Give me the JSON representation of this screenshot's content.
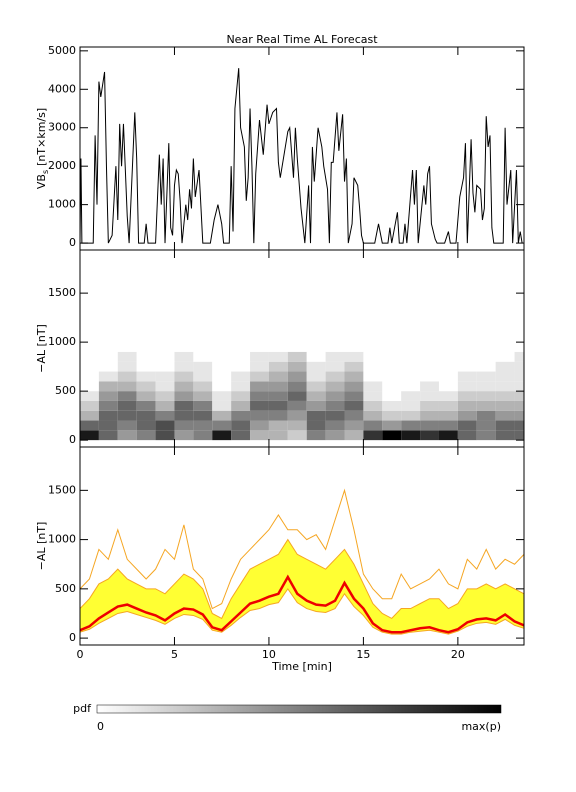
{
  "chart_data": [
    {
      "type": "line",
      "title": "Near Real Time AL Forecast",
      "ylabel": {
        "text": "VB",
        "subscript": "s",
        "unit": "[nT×km/s]"
      },
      "xlim": [
        0,
        23.5
      ],
      "ylim": [
        -180,
        5100
      ],
      "yticks": [
        0,
        1000,
        2000,
        3000,
        4000,
        5000
      ],
      "color": "#000000",
      "x": [
        0,
        0.05,
        0.1,
        0.7,
        0.8,
        0.9,
        1.0,
        1.1,
        1.3,
        1.4,
        1.5,
        1.7,
        1.9,
        2.0,
        2.1,
        2.2,
        2.3,
        2.5,
        2.6,
        2.9,
        3.0,
        3.1,
        3.4,
        3.5,
        3.6,
        4.0,
        4.2,
        4.3,
        4.4,
        4.5,
        4.6,
        4.7,
        4.8,
        4.9,
        5.0,
        5.1,
        5.2,
        5.3,
        5.4,
        5.6,
        5.7,
        5.8,
        5.9,
        6.0,
        6.1,
        6.3,
        6.5,
        6.9,
        7.1,
        7.3,
        7.5,
        7.6,
        7.9,
        8.0,
        8.1,
        8.2,
        8.4,
        8.5,
        8.7,
        8.8,
        8.9,
        9.0,
        9.1,
        9.2,
        9.3,
        9.5,
        9.7,
        9.9,
        10.0,
        10.2,
        10.4,
        10.5,
        10.6,
        10.8,
        11.0,
        11.1,
        11.3,
        11.4,
        11.5,
        11.7,
        11.9,
        12.1,
        12.2,
        12.3,
        12.4,
        12.6,
        12.8,
        12.9,
        13.1,
        13.2,
        13.3,
        13.4,
        13.6,
        13.7,
        13.9,
        14.0,
        14.1,
        14.2,
        14.4,
        14.5,
        14.7,
        14.8,
        14.9,
        15.0,
        15.6,
        15.8,
        16.0,
        16.3,
        16.4,
        16.5,
        16.8,
        16.9,
        17.1,
        17.2,
        17.3,
        17.6,
        17.7,
        17.8,
        17.9,
        18.2,
        18.3,
        18.4,
        18.5,
        18.6,
        18.8,
        18.9,
        19.3,
        19.5,
        19.6,
        19.9,
        20.1,
        20.3,
        20.4,
        20.5,
        20.7,
        20.8,
        20.9,
        21.0,
        21.2,
        21.3,
        21.4,
        21.5,
        21.6,
        21.7,
        21.8,
        21.9,
        22.4,
        22.5,
        22.6,
        22.8,
        22.9,
        23.1,
        23.2,
        23.3,
        23.4
      ],
      "values": [
        0,
        2200,
        0,
        0,
        2800,
        1000,
        4200,
        3800,
        4450,
        2000,
        0,
        200,
        2000,
        600,
        3100,
        2000,
        3100,
        700,
        0,
        3400,
        2200,
        0,
        0,
        500,
        0,
        0,
        2300,
        1000,
        2200,
        0,
        1300,
        2600,
        400,
        200,
        1500,
        1900,
        1800,
        1100,
        0,
        1000,
        600,
        1400,
        900,
        2200,
        1200,
        1900,
        0,
        0,
        600,
        1000,
        500,
        0,
        0,
        2000,
        300,
        3500,
        4550,
        3000,
        2500,
        1100,
        1700,
        3500,
        2000,
        0,
        1800,
        3200,
        2300,
        3600,
        3100,
        3400,
        3500,
        2100,
        1700,
        2300,
        2900,
        3000,
        1700,
        3000,
        2200,
        900,
        0,
        1500,
        0,
        2500,
        1600,
        3000,
        2500,
        2000,
        1400,
        0,
        2100,
        2100,
        3400,
        2400,
        3350,
        1600,
        2200,
        0,
        500,
        1700,
        1500,
        900,
        200,
        0,
        0,
        500,
        0,
        0,
        400,
        0,
        800,
        0,
        0,
        500,
        0,
        1900,
        1000,
        1900,
        0,
        1500,
        1000,
        1800,
        2000,
        500,
        100,
        0,
        0,
        300,
        0,
        0,
        1200,
        1700,
        2600,
        0,
        2700,
        1300,
        800,
        1500,
        1400,
        600,
        900,
        3300,
        2500,
        2800,
        400,
        0,
        0,
        3000,
        1000,
        1900,
        0,
        1900,
        0,
        300,
        0
      ]
    },
    {
      "type": "heatmap",
      "ylabel": "−AL [nT]",
      "xlim": [
        0,
        23.5
      ],
      "ylim": [
        -70,
        1940
      ],
      "yticks": [
        0,
        500,
        1000,
        1500
      ],
      "x_bins": [
        0,
        1,
        2,
        3,
        4,
        5,
        6,
        7,
        8,
        9,
        10,
        11,
        12,
        13,
        14,
        15,
        16,
        17,
        18,
        19,
        20,
        21,
        22,
        23,
        24
      ],
      "y_bins": [
        0,
        100,
        200,
        300,
        400,
        500,
        600,
        700,
        800,
        900
      ],
      "z": [
        [
          0.9,
          0.6,
          0.4,
          0.5,
          0.7,
          0.4,
          0.5,
          0.9,
          0.6,
          0.3,
          0.3,
          0.2,
          0.5,
          0.4,
          0.3,
          0.8,
          1.0,
          0.9,
          0.8,
          0.9,
          0.6,
          0.5,
          0.6,
          0.6
        ],
        [
          0.6,
          0.6,
          0.5,
          0.6,
          0.7,
          0.5,
          0.5,
          0.5,
          0.6,
          0.4,
          0.3,
          0.3,
          0.6,
          0.5,
          0.4,
          0.5,
          0.4,
          0.5,
          0.5,
          0.5,
          0.6,
          0.5,
          0.6,
          0.6
        ],
        [
          0.3,
          0.6,
          0.6,
          0.6,
          0.5,
          0.6,
          0.6,
          0.3,
          0.5,
          0.5,
          0.5,
          0.4,
          0.6,
          0.6,
          0.5,
          0.3,
          0.2,
          0.2,
          0.3,
          0.3,
          0.4,
          0.5,
          0.4,
          0.4
        ],
        [
          0.2,
          0.5,
          0.6,
          0.5,
          0.3,
          0.6,
          0.5,
          0.1,
          0.3,
          0.6,
          0.6,
          0.5,
          0.4,
          0.5,
          0.6,
          0.2,
          0.1,
          0.1,
          0.2,
          0.2,
          0.3,
          0.3,
          0.3,
          0.3
        ],
        [
          0.1,
          0.4,
          0.5,
          0.3,
          0.2,
          0.4,
          0.3,
          0.1,
          0.2,
          0.5,
          0.5,
          0.6,
          0.3,
          0.4,
          0.5,
          0.1,
          0.0,
          0.1,
          0.1,
          0.1,
          0.2,
          0.2,
          0.2,
          0.2
        ],
        [
          0.0,
          0.3,
          0.3,
          0.2,
          0.1,
          0.3,
          0.2,
          0.0,
          0.1,
          0.4,
          0.4,
          0.5,
          0.2,
          0.3,
          0.4,
          0.1,
          0.0,
          0.0,
          0.1,
          0.0,
          0.1,
          0.1,
          0.1,
          0.1
        ],
        [
          0.0,
          0.1,
          0.2,
          0.1,
          0.1,
          0.2,
          0.1,
          0.0,
          0.1,
          0.2,
          0.3,
          0.4,
          0.1,
          0.2,
          0.3,
          0.0,
          0.0,
          0.0,
          0.0,
          0.0,
          0.1,
          0.1,
          0.1,
          0.1
        ],
        [
          0.0,
          0.0,
          0.1,
          0.0,
          0.0,
          0.1,
          0.1,
          0.0,
          0.0,
          0.1,
          0.2,
          0.3,
          0.1,
          0.1,
          0.2,
          0.0,
          0.0,
          0.0,
          0.0,
          0.0,
          0.0,
          0.0,
          0.1,
          0.1
        ],
        [
          0.0,
          0.0,
          0.1,
          0.0,
          0.0,
          0.1,
          0.0,
          0.0,
          0.0,
          0.1,
          0.1,
          0.2,
          0.0,
          0.1,
          0.1,
          0.0,
          0.0,
          0.0,
          0.0,
          0.0,
          0.0,
          0.0,
          0.0,
          0.1
        ]
      ],
      "colorbar_label": "pdf",
      "clim": [
        0,
        1
      ],
      "cticks": [
        0,
        {
          "value": 1,
          "label": "max(p)"
        }
      ]
    },
    {
      "type": "band",
      "ylabel": "−AL [nT]",
      "xlabel": "Time [min]",
      "xlim": [
        0,
        23.5
      ],
      "xticks": [
        0,
        5,
        10,
        15,
        20
      ],
      "ylim": [
        -70,
        1940
      ],
      "yticks": [
        0,
        500,
        1000,
        1500
      ],
      "x": [
        0,
        0.5,
        1,
        1.5,
        2,
        2.5,
        3,
        3.5,
        4,
        4.5,
        5,
        5.5,
        6,
        6.5,
        7,
        7.5,
        8,
        8.5,
        9,
        9.5,
        10,
        10.5,
        11,
        11.5,
        12,
        12.5,
        13,
        13.5,
        14,
        14.5,
        15,
        15.5,
        16,
        16.5,
        17,
        17.5,
        18,
        18.5,
        19,
        19.5,
        20,
        20.5,
        21,
        21.5,
        22,
        22.5,
        23,
        23.5
      ],
      "series": [
        {
          "color": "#f5a623",
          "values": [
            500,
            600,
            900,
            800,
            1100,
            800,
            700,
            600,
            700,
            900,
            800,
            1150,
            700,
            600,
            300,
            350,
            600,
            800,
            900,
            1000,
            1100,
            1250,
            1100,
            1100,
            1000,
            1050,
            900,
            1200,
            1500,
            1100,
            650,
            500,
            400,
            400,
            650,
            500,
            550,
            600,
            700,
            550,
            500,
            800,
            700,
            900,
            700,
            800,
            750,
            850
          ]
        },
        {
          "color": "#f5a623",
          "fill": "#ffff33",
          "values": [
            300,
            400,
            550,
            600,
            700,
            600,
            550,
            500,
            500,
            450,
            550,
            650,
            600,
            500,
            250,
            200,
            400,
            550,
            700,
            750,
            800,
            850,
            1000,
            850,
            800,
            750,
            700,
            800,
            900,
            750,
            550,
            350,
            250,
            200,
            300,
            300,
            350,
            400,
            400,
            300,
            350,
            500,
            500,
            550,
            500,
            550,
            500,
            450
          ]
        },
        {
          "color": "#f5a623",
          "values": [
            60,
            90,
            150,
            200,
            250,
            270,
            240,
            210,
            180,
            140,
            200,
            240,
            230,
            190,
            80,
            60,
            130,
            210,
            280,
            300,
            340,
            360,
            500,
            360,
            300,
            270,
            260,
            300,
            450,
            320,
            230,
            110,
            60,
            40,
            40,
            60,
            70,
            80,
            60,
            40,
            70,
            120,
            150,
            160,
            140,
            190,
            130,
            100
          ]
        },
        {
          "color": "#ee0000",
          "width": 2.5,
          "values": [
            80,
            120,
            200,
            260,
            320,
            340,
            300,
            260,
            230,
            180,
            250,
            300,
            290,
            240,
            110,
            80,
            170,
            260,
            350,
            380,
            420,
            450,
            620,
            450,
            380,
            340,
            330,
            380,
            560,
            400,
            300,
            150,
            80,
            60,
            60,
            80,
            100,
            110,
            80,
            60,
            90,
            160,
            190,
            200,
            180,
            240,
            170,
            130
          ]
        }
      ]
    }
  ]
}
